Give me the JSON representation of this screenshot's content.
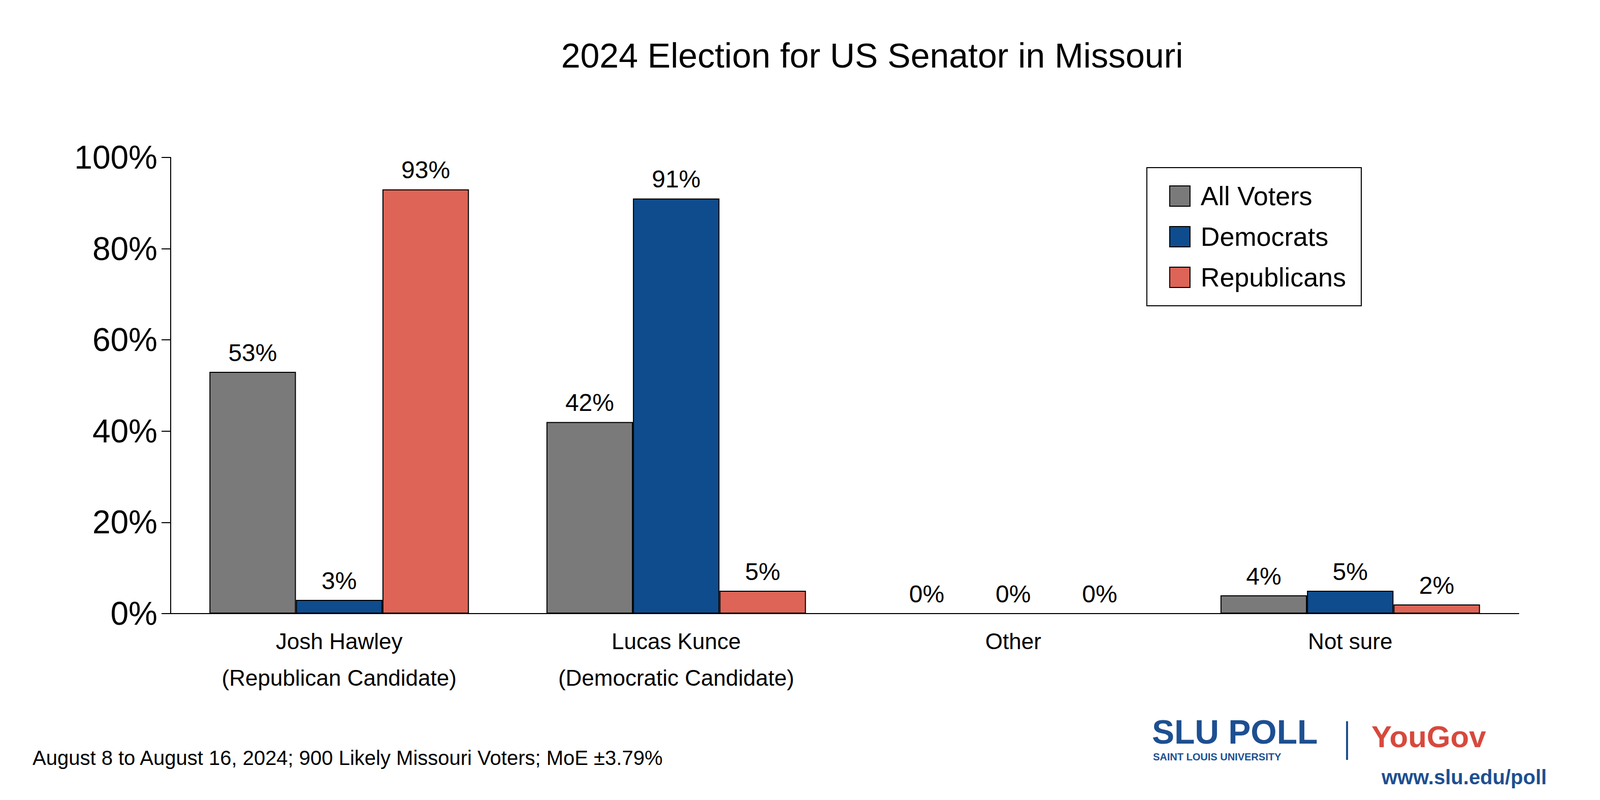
{
  "chart_data": {
    "type": "bar",
    "title": "2024 Election for US Senator in Missouri",
    "categories": [
      "Josh Hawley\n(Republican Candidate)",
      "Lucas Kunce\n(Democratic Candidate)",
      "Other",
      "Not sure"
    ],
    "series": [
      {
        "name": "All Voters",
        "color": "#7a7a7a",
        "values": [
          53,
          42,
          0,
          4
        ],
        "value_labels": [
          "53%",
          "42%",
          "0%",
          "4%"
        ]
      },
      {
        "name": "Democrats",
        "color": "#0e4c8e",
        "values": [
          3,
          91,
          0,
          5
        ],
        "value_labels": [
          "3%",
          "91%",
          "0%",
          "5%"
        ]
      },
      {
        "name": "Republicans",
        "color": "#dd6456",
        "values": [
          93,
          5,
          0,
          2
        ],
        "value_labels": [
          "93%",
          "5%",
          "0%",
          "2%"
        ]
      }
    ],
    "ylim": [
      0,
      100
    ],
    "yticks": [
      {
        "value": 0,
        "label": "0%"
      },
      {
        "value": 20,
        "label": "20%"
      },
      {
        "value": 40,
        "label": "40%"
      },
      {
        "value": 60,
        "label": "60%"
      },
      {
        "value": 80,
        "label": "80%"
      },
      {
        "value": 100,
        "label": "100%"
      }
    ],
    "grid": false,
    "legend": "upper right",
    "data_labels": true,
    "annotations": [
      "August 8 to August 16, 2024; 900 Likely Missouri Voters; MoE ±3.79%",
      "SLU POLL",
      "SAINT LOUIS UNIVERSITY",
      "YouGov",
      "www.slu.edu/poll"
    ]
  }
}
